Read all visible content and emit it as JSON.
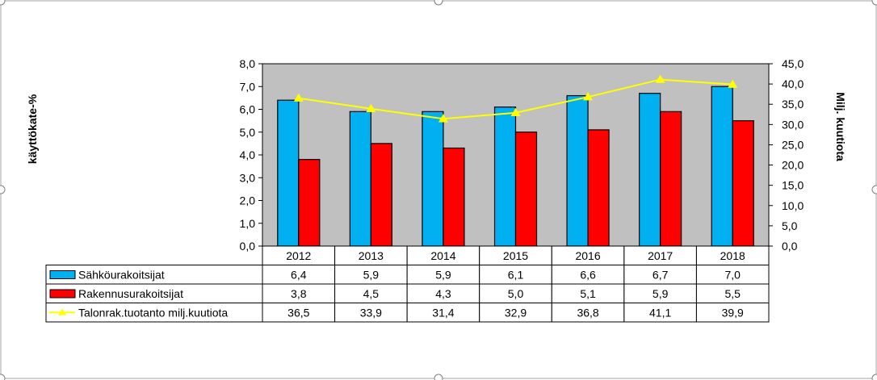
{
  "chart_data": {
    "type": "bar",
    "categories": [
      "2012",
      "2013",
      "2014",
      "2015",
      "2016",
      "2017",
      "2018"
    ],
    "series": [
      {
        "name": "Sähköurakoitsijat",
        "chart_type": "bar",
        "axis": "left",
        "color": "#00b0f0",
        "values": [
          6.4,
          5.9,
          5.9,
          6.1,
          6.6,
          6.7,
          7.0
        ],
        "labels": [
          "6,4",
          "5,9",
          "5,9",
          "6,1",
          "6,6",
          "6,7",
          "7,0"
        ]
      },
      {
        "name": "Rakennusurakoitsijat",
        "chart_type": "bar",
        "axis": "left",
        "color": "#ff0000",
        "values": [
          3.8,
          4.5,
          4.3,
          5.0,
          5.1,
          5.9,
          5.5
        ],
        "labels": [
          "3,8",
          "4,5",
          "4,3",
          "5,0",
          "5,1",
          "5,9",
          "5,5"
        ]
      },
      {
        "name": "Talonrak.tuotanto milj.kuutiota",
        "chart_type": "line",
        "axis": "right",
        "color": "#ffff00",
        "values": [
          36.5,
          33.9,
          31.4,
          32.9,
          36.8,
          41.1,
          39.9
        ],
        "labels": [
          "36,5",
          "33,9",
          "31,4",
          "32,9",
          "36,8",
          "41,1",
          "39,9"
        ]
      }
    ],
    "ylabel": "käyttökate-%",
    "y2label": "Milj. kuutiota",
    "ylim": [
      0,
      8
    ],
    "y2lim": [
      0,
      45
    ],
    "yticks": [
      "0,0",
      "1,0",
      "2,0",
      "3,0",
      "4,0",
      "5,0",
      "6,0",
      "7,0",
      "8,0"
    ],
    "y2ticks": [
      "0,0",
      "5,0",
      "10,0",
      "15,0",
      "20,0",
      "25,0",
      "30,0",
      "35,0",
      "40,0",
      "45,0"
    ],
    "plot_background": "#c0c0c0",
    "legend": "data-table"
  }
}
